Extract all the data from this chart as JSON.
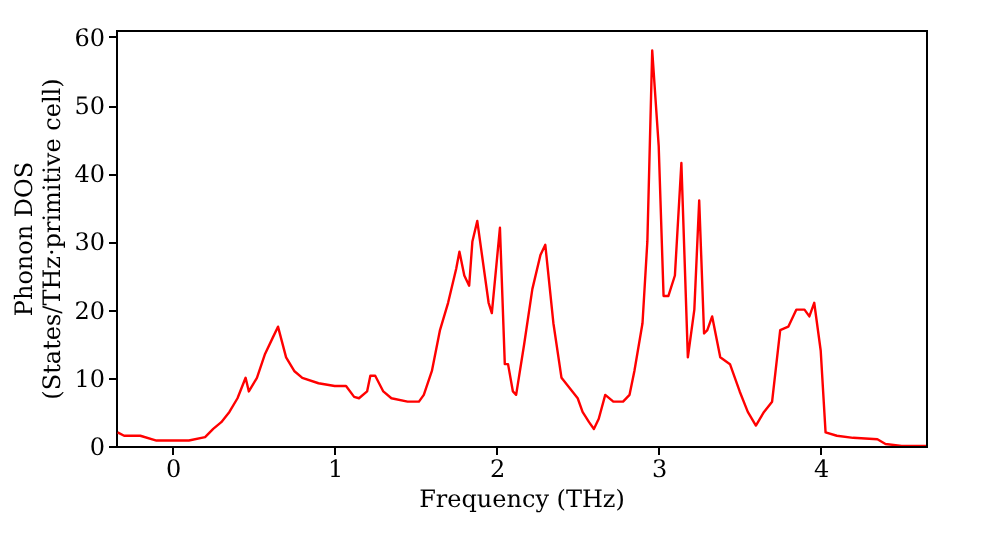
{
  "chart_data": {
    "type": "line",
    "xlabel": "Frequency (THz)",
    "ylabel": "Phonon DOS\n(States/THz·primitive cell)",
    "xlim": [
      -0.35,
      4.65
    ],
    "xticks": [
      0,
      1,
      2,
      3,
      4
    ],
    "ylim": [
      0,
      61
    ],
    "yticks": [
      0,
      10,
      20,
      30,
      40,
      50,
      60
    ],
    "grid": false,
    "line_style": "solid",
    "marker": "none",
    "series": [
      {
        "color": "#ff0000",
        "x": [
          -0.34,
          -0.3,
          -0.2,
          -0.1,
          0,
          0.1,
          0.2,
          0.25,
          0.3,
          0.35,
          0.4,
          0.45,
          0.47,
          0.52,
          0.57,
          0.62,
          0.65,
          0.7,
          0.75,
          0.8,
          0.9,
          1.0,
          1.07,
          1.12,
          1.15,
          1.2,
          1.22,
          1.25,
          1.3,
          1.35,
          1.45,
          1.52,
          1.55,
          1.6,
          1.65,
          1.7,
          1.75,
          1.77,
          1.8,
          1.83,
          1.85,
          1.88,
          1.95,
          1.97,
          2.02,
          2.05,
          2.07,
          2.1,
          2.12,
          2.17,
          2.22,
          2.27,
          2.3,
          2.35,
          2.4,
          2.45,
          2.5,
          2.53,
          2.57,
          2.6,
          2.63,
          2.67,
          2.72,
          2.78,
          2.82,
          2.85,
          2.9,
          2.93,
          2.96,
          3.0,
          3.03,
          3.06,
          3.1,
          3.14,
          3.18,
          3.22,
          3.25,
          3.28,
          3.3,
          3.33,
          3.38,
          3.44,
          3.5,
          3.55,
          3.6,
          3.65,
          3.7,
          3.75,
          3.8,
          3.85,
          3.9,
          3.93,
          3.96,
          4.0,
          4.03,
          4.1,
          4.2,
          4.35,
          4.4,
          4.5,
          4.65
        ],
        "values": [
          2,
          1.5,
          1.5,
          0.8,
          0.8,
          0.8,
          1.3,
          2.5,
          3.5,
          5,
          7,
          10,
          8,
          10,
          13.5,
          16,
          17.5,
          13,
          11,
          10,
          9.2,
          8.8,
          8.8,
          7.2,
          7,
          8,
          10.3,
          10.3,
          8,
          7,
          6.5,
          6.5,
          7.5,
          11,
          17,
          21,
          26,
          28.5,
          25,
          23.5,
          30,
          33,
          21,
          19.5,
          32,
          12,
          12,
          8,
          7.5,
          15,
          23,
          28,
          29.5,
          18,
          10,
          8.5,
          7,
          5,
          3.5,
          2.5,
          4,
          7.5,
          6.5,
          6.5,
          7.5,
          11,
          18,
          30,
          58,
          44,
          22,
          22,
          25,
          41.5,
          13,
          20,
          36,
          16.5,
          17,
          19,
          13,
          12,
          8,
          5,
          3,
          5,
          6.5,
          17,
          17.5,
          20,
          20,
          19,
          21,
          14,
          2,
          1.5,
          1.2,
          1,
          0.3,
          0,
          0
        ]
      }
    ]
  }
}
